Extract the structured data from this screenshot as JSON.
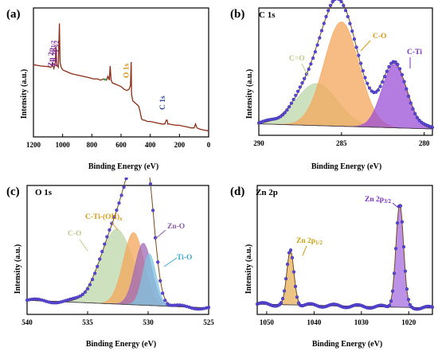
{
  "chart_data": [
    {
      "type": "line",
      "panel": "(a)",
      "title": "",
      "xlabel": "Binding Energy (eV)",
      "ylabel": "Intensity (a.u.)",
      "xlim": [
        1200,
        0
      ],
      "x_reversed": true,
      "xticks": [
        1200,
        1000,
        800,
        600,
        400,
        200,
        0
      ],
      "color_line": "#8b2c14",
      "color_marker": "#3ca05a",
      "series": [
        {
          "x": [
            1200,
            1150,
            1100,
            1080,
            1070,
            1060,
            1050,
            1046,
            1040,
            1030,
            1022,
            1018,
            1010,
            1000,
            980,
            960,
            940,
            900,
            860,
            820,
            790,
            760,
            740,
            720,
            700,
            690,
            680,
            675,
            668,
            660,
            640,
            620,
            600,
            580,
            560,
            545,
            535,
            531,
            528,
            520,
            500,
            490,
            480,
            470,
            460,
            450,
            440,
            420,
            400,
            380,
            360,
            340,
            320,
            300,
            290,
            285,
            282,
            280,
            270,
            250,
            220,
            200,
            180,
            160,
            140,
            120,
            100,
            90,
            80,
            60,
            40,
            20,
            10,
            0
          ],
          "y": [
            0.56,
            0.55,
            0.545,
            0.54,
            0.56,
            0.53,
            0.58,
            0.7,
            0.56,
            0.54,
            0.88,
            0.58,
            0.54,
            0.52,
            0.51,
            0.5,
            0.49,
            0.48,
            0.47,
            0.46,
            0.45,
            0.45,
            0.44,
            0.45,
            0.44,
            0.47,
            0.44,
            0.55,
            0.44,
            0.42,
            0.41,
            0.4,
            0.39,
            0.37,
            0.36,
            0.37,
            0.4,
            0.58,
            0.33,
            0.28,
            0.26,
            0.25,
            0.24,
            0.2,
            0.14,
            0.13,
            0.13,
            0.12,
            0.12,
            0.115,
            0.11,
            0.105,
            0.1,
            0.1,
            0.13,
            0.13,
            0.12,
            0.1,
            0.1,
            0.095,
            0.09,
            0.09,
            0.085,
            0.08,
            0.075,
            0.07,
            0.07,
            0.1,
            0.07,
            0.06,
            0.055,
            0.05,
            0.05,
            0.04
          ]
        }
      ],
      "annotations": [
        {
          "text": "Zn 2p",
          "sub": "1/2",
          "x": 1046,
          "color": "#7a2590"
        },
        {
          "text": "Zn 2p",
          "sub": "3/2",
          "x": 1022,
          "color": "#7a2590"
        },
        {
          "text": "O 1s",
          "sub": "",
          "x": 531,
          "color": "#d8900a"
        },
        {
          "text": "C 1s",
          "sub": "",
          "x": 285,
          "color": "#2c3f9a"
        }
      ]
    },
    {
      "type": "area",
      "panel": "(b)",
      "title": "C 1s",
      "xlabel": "Binding Energy (eV)",
      "ylabel": "Intensity (a.u.)",
      "xlim": [
        290,
        279.5
      ],
      "x_reversed": true,
      "xticks": [
        290,
        285,
        280
      ],
      "baseline": 0.05,
      "components": [
        {
          "name": "C=O",
          "center": 286.5,
          "height": 0.33,
          "width": 1.25,
          "color": "#bcd7a8"
        },
        {
          "name": "C-O",
          "center": 285.0,
          "height": 0.82,
          "width": 1.05,
          "color": "#f4a65a"
        },
        {
          "name": "C-Ti",
          "center": 281.8,
          "height": 0.5,
          "width": 0.75,
          "color": "#9b4fd6"
        }
      ],
      "labels": [
        {
          "text": "C=O",
          "color": "#b7cc8a"
        },
        {
          "text": "C-O",
          "color": "#d89a14"
        },
        {
          "text": "C-Ti",
          "color": "#7a2fc0"
        }
      ]
    },
    {
      "type": "area",
      "panel": "(c)",
      "title": "O 1s",
      "xlabel": "Binding Energy (eV)",
      "ylabel": "Intensity (a.u.)",
      "xlim": [
        540,
        525
      ],
      "x_reversed": true,
      "xticks": [
        540,
        535,
        530,
        525
      ],
      "baseline": 0.05,
      "components": [
        {
          "name": "C-O",
          "center": 532.6,
          "height": 0.58,
          "width": 1.35,
          "color": "#bcd7a8"
        },
        {
          "name": "C-Ti-(OH)x",
          "center": 531.2,
          "height": 0.56,
          "width": 0.85,
          "color": "#f4a65a"
        },
        {
          "name": "Zn-O",
          "center": 530.4,
          "height": 0.48,
          "width": 0.7,
          "color": "#a06ab8"
        },
        {
          "name": "Ti-O",
          "center": 529.9,
          "height": 0.4,
          "width": 0.55,
          "color": "#7fc6df"
        }
      ],
      "labels": [
        {
          "text": "C-O",
          "sub": "",
          "color": "#b7cc8a"
        },
        {
          "text": "C-Ti-(OH)",
          "sub": "x",
          "color": "#d89a14"
        },
        {
          "text": "Zn-O",
          "sub": "",
          "color": "#8a5aa8"
        },
        {
          "text": "Ti-O",
          "sub": "",
          "color": "#3ca7d0"
        }
      ]
    },
    {
      "type": "area",
      "panel": "(d)",
      "title": "Zn 2p",
      "xlabel": "Binding Energy (eV)",
      "ylabel": "Intensity (a.u.)",
      "xlim": [
        1052,
        1015
      ],
      "x_reversed": true,
      "xticks": [
        1050,
        1040,
        1030,
        1020
      ],
      "baseline": 0.05,
      "components": [
        {
          "name": "Zn 2p1/2",
          "center": 1045.0,
          "height": 0.42,
          "width": 0.75,
          "color": "#e6b05a"
        },
        {
          "name": "Zn 2p3/2",
          "center": 1021.9,
          "height": 0.8,
          "width": 0.8,
          "color": "#a66de0"
        }
      ],
      "labels": [
        {
          "text": "Zn 2p",
          "sub": "1/2",
          "color": "#c8a010"
        },
        {
          "text": "Zn 2p",
          "sub": "3/2",
          "color": "#7a2fc0"
        }
      ]
    }
  ]
}
